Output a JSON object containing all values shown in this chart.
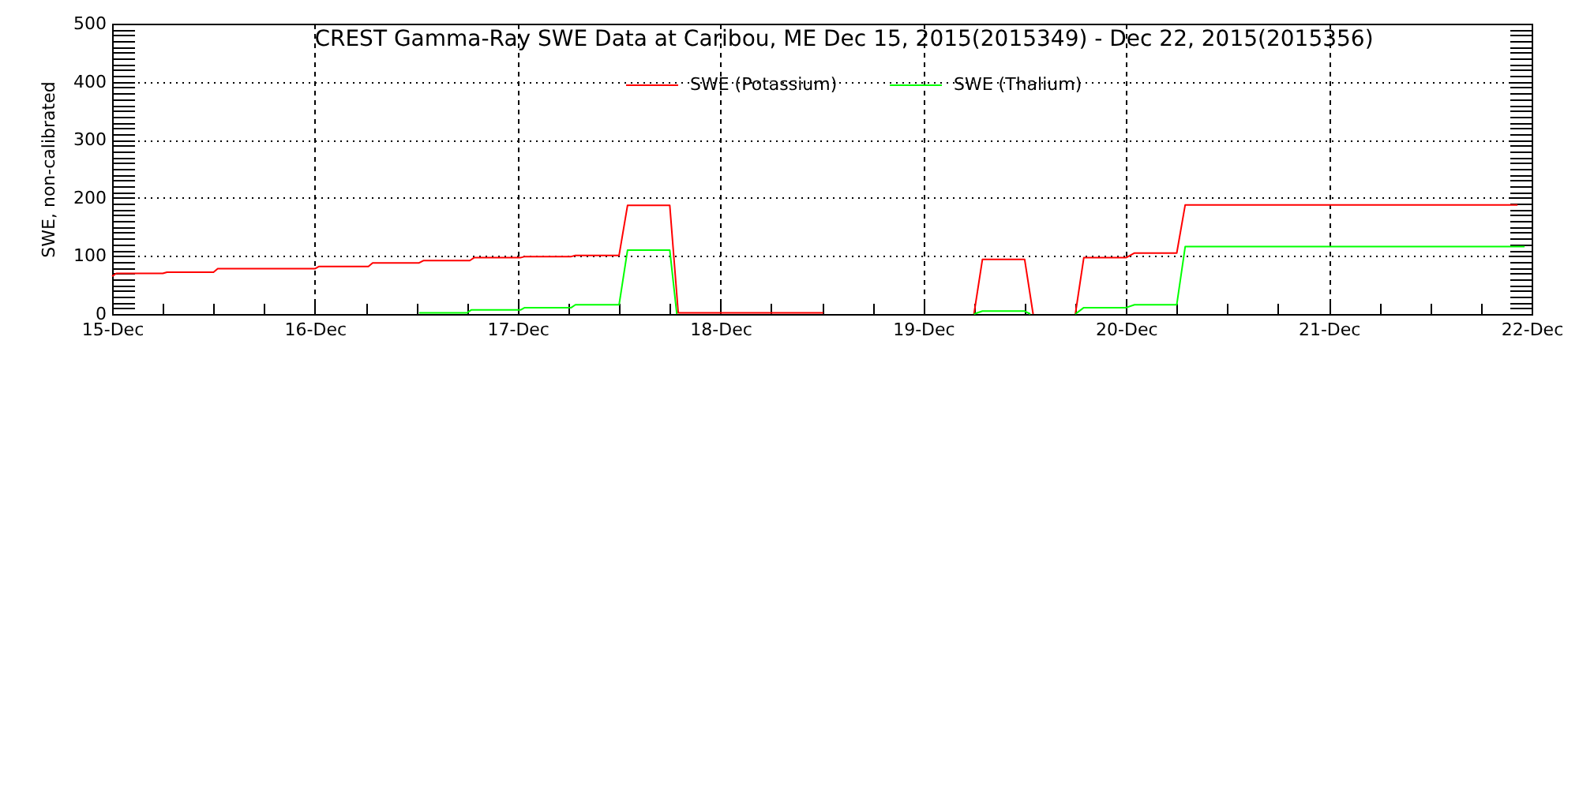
{
  "chart_data": {
    "type": "line",
    "title": "CREST Gamma-Ray SWE Data at Caribou, ME   Dec 15, 2015(2015349) - Dec 22, 2015(2015356)",
    "ylabel": "SWE, non-calibrated",
    "legend": "top",
    "grid": true,
    "xlim": [
      "2015-12-15T00:00",
      "2015-12-22T00:00"
    ],
    "xticks": [
      {
        "value": "2015-12-15T00:00",
        "label": "15-Dec"
      },
      {
        "value": "2015-12-15T06:00",
        "label": null
      },
      {
        "value": "2015-12-15T12:00",
        "label": null
      },
      {
        "value": "2015-12-15T18:00",
        "label": null
      },
      {
        "value": "2015-12-16T00:00",
        "label": "16-Dec"
      },
      {
        "value": "2015-12-16T06:00",
        "label": null
      },
      {
        "value": "2015-12-16T12:00",
        "label": null
      },
      {
        "value": "2015-12-16T18:00",
        "label": null
      },
      {
        "value": "2015-12-17T00:00",
        "label": "17-Dec"
      },
      {
        "value": "2015-12-17T06:00",
        "label": null
      },
      {
        "value": "2015-12-17T12:00",
        "label": null
      },
      {
        "value": "2015-12-17T18:00",
        "label": null
      },
      {
        "value": "2015-12-18T00:00",
        "label": "18-Dec"
      },
      {
        "value": "2015-12-18T06:00",
        "label": null
      },
      {
        "value": "2015-12-18T12:00",
        "label": null
      },
      {
        "value": "2015-12-18T18:00",
        "label": null
      },
      {
        "value": "2015-12-19T00:00",
        "label": "19-Dec"
      },
      {
        "value": "2015-12-19T06:00",
        "label": null
      },
      {
        "value": "2015-12-19T12:00",
        "label": null
      },
      {
        "value": "2015-12-19T18:00",
        "label": null
      },
      {
        "value": "2015-12-20T00:00",
        "label": "20-Dec"
      },
      {
        "value": "2015-12-20T06:00",
        "label": null
      },
      {
        "value": "2015-12-20T12:00",
        "label": null
      },
      {
        "value": "2015-12-20T18:00",
        "label": null
      },
      {
        "value": "2015-12-21T00:00",
        "label": "21-Dec"
      },
      {
        "value": "2015-12-21T06:00",
        "label": null
      },
      {
        "value": "2015-12-21T12:00",
        "label": null
      },
      {
        "value": "2015-12-21T18:00",
        "label": null
      },
      {
        "value": "2015-12-22T00:00",
        "label": "22-Dec"
      }
    ],
    "ylim": [
      0,
      500
    ],
    "yticks": [
      0,
      {
        "value": 10,
        "label": null
      },
      {
        "value": 20,
        "label": null
      },
      {
        "value": 30,
        "label": null
      },
      {
        "value": 40,
        "label": null
      },
      {
        "value": 50,
        "label": null
      },
      {
        "value": 60,
        "label": null
      },
      {
        "value": 70,
        "label": null
      },
      {
        "value": 80,
        "label": null
      },
      {
        "value": 90,
        "label": null
      },
      100,
      {
        "value": 110,
        "label": null
      },
      {
        "value": 120,
        "label": null
      },
      {
        "value": 130,
        "label": null
      },
      {
        "value": 140,
        "label": null
      },
      {
        "value": 150,
        "label": null
      },
      {
        "value": 160,
        "label": null
      },
      {
        "value": 170,
        "label": null
      },
      {
        "value": 180,
        "label": null
      },
      {
        "value": 190,
        "label": null
      },
      200,
      {
        "value": 210,
        "label": null
      },
      {
        "value": 220,
        "label": null
      },
      {
        "value": 230,
        "label": null
      },
      {
        "value": 240,
        "label": null
      },
      {
        "value": 250,
        "label": null
      },
      {
        "value": 260,
        "label": null
      },
      {
        "value": 270,
        "label": null
      },
      {
        "value": 280,
        "label": null
      },
      {
        "value": 290,
        "label": null
      },
      300,
      {
        "value": 310,
        "label": null
      },
      {
        "value": 320,
        "label": null
      },
      {
        "value": 330,
        "label": null
      },
      {
        "value": 340,
        "label": null
      },
      {
        "value": 350,
        "label": null
      },
      {
        "value": 360,
        "label": null
      },
      {
        "value": 370,
        "label": null
      },
      {
        "value": 380,
        "label": null
      },
      {
        "value": 390,
        "label": null
      },
      400,
      {
        "value": 410,
        "label": null
      },
      {
        "value": 420,
        "label": null
      },
      {
        "value": 430,
        "label": null
      },
      {
        "value": 440,
        "label": null
      },
      {
        "value": 450,
        "label": null
      },
      {
        "value": 460,
        "label": null
      },
      {
        "value": 470,
        "label": null
      },
      {
        "value": 480,
        "label": null
      },
      {
        "value": 490,
        "label": null
      },
      500
    ],
    "series": [
      {
        "name": "SWE (Potassium)",
        "color": "#ff0000",
        "x": [
          "2015-12-15T00:00",
          "2015-12-15T00:30",
          "2015-12-15T06:00",
          "2015-12-15T06:30",
          "2015-12-15T12:00",
          "2015-12-15T12:30",
          "2015-12-16T00:00",
          "2015-12-16T00:30",
          "2015-12-16T06:20",
          "2015-12-16T06:50",
          "2015-12-16T12:20",
          "2015-12-16T12:50",
          "2015-12-16T18:20",
          "2015-12-16T18:50",
          "2015-12-17T00:20",
          "2015-12-17T00:50",
          "2015-12-17T06:20",
          "2015-12-17T06:50",
          "2015-12-17T12:00",
          "2015-12-17T13:00",
          "2015-12-17T18:00",
          "2015-12-17T19:00",
          "2015-12-18T12:10",
          "2015-12-18T21:00",
          "2015-12-19T06:00",
          "2015-12-19T07:00",
          "2015-12-19T12:00",
          "2015-12-19T13:00",
          "2015-12-19T15:30",
          "2015-12-19T18:00",
          "2015-12-19T19:00",
          "2015-12-20T00:00",
          "2015-12-20T01:00",
          "2015-12-20T06:00",
          "2015-12-20T07:00",
          "2015-12-21T22:20"
        ],
        "values": [
          65,
          70,
          70,
          72,
          72,
          78,
          78,
          82,
          82,
          88,
          88,
          92,
          92,
          97,
          97,
          99,
          99,
          101,
          101,
          187,
          187,
          2,
          2,
          null,
          0,
          94,
          94,
          0,
          null,
          0,
          97,
          97,
          105,
          105,
          188,
          188
        ]
      },
      {
        "name": "SWE (Thalium)",
        "color": "#00ff00",
        "x": [
          "2015-12-16T12:20",
          "2015-12-16T18:00",
          "2015-12-16T18:30",
          "2015-12-17T00:20",
          "2015-12-17T00:50",
          "2015-12-17T06:20",
          "2015-12-17T06:50",
          "2015-12-17T12:00",
          "2015-12-17T13:00",
          "2015-12-17T18:00",
          "2015-12-17T18:50",
          "2015-12-18T12:00",
          "2015-12-19T06:00",
          "2015-12-19T07:00",
          "2015-12-19T12:00",
          "2015-12-19T12:40",
          "2015-12-19T15:30",
          "2015-12-19T18:00",
          "2015-12-19T19:00",
          "2015-12-20T00:00",
          "2015-12-20T01:00",
          "2015-12-20T06:00",
          "2015-12-20T07:00",
          "2015-12-21T23:10"
        ],
        "values": [
          2,
          2,
          7,
          7,
          11,
          11,
          16,
          16,
          110,
          110,
          0,
          null,
          0,
          5,
          5,
          0,
          null,
          0,
          11,
          11,
          16,
          16,
          116,
          116
        ]
      }
    ]
  }
}
